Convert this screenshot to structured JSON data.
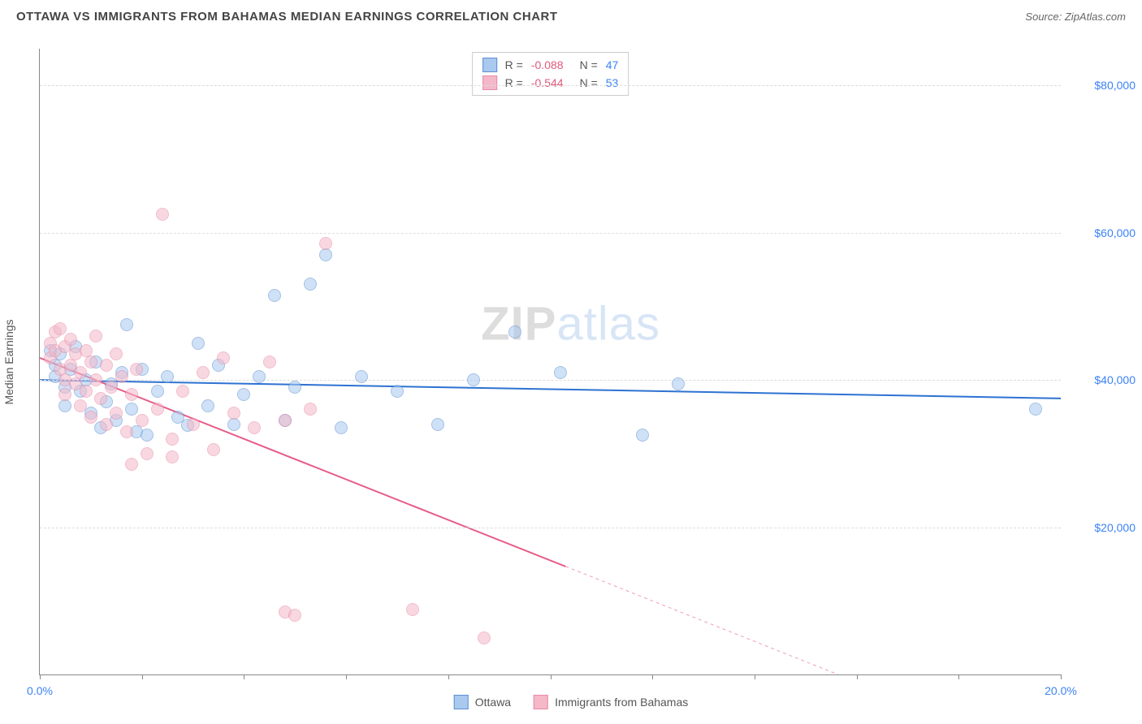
{
  "header": {
    "title": "OTTAWA VS IMMIGRANTS FROM BAHAMAS MEDIAN EARNINGS CORRELATION CHART",
    "source_label": "Source:",
    "source_name": "ZipAtlas.com"
  },
  "chart": {
    "type": "scatter",
    "ylabel": "Median Earnings",
    "xlim": [
      0,
      20
    ],
    "ylim": [
      0,
      85000
    ],
    "y_gridlines": [
      20000,
      40000,
      60000,
      80000
    ],
    "y_tick_labels": [
      "$20,000",
      "$40,000",
      "$60,000",
      "$80,000"
    ],
    "x_ticks": [
      0,
      2,
      4,
      6,
      8,
      10,
      12,
      14,
      16,
      18,
      20
    ],
    "x_tick_labels": {
      "0": "0.0%",
      "20": "20.0%"
    },
    "grid_color": "#dddddd",
    "axis_color": "#888888",
    "background_color": "#ffffff",
    "marker_radius": 8,
    "marker_opacity": 0.55,
    "series": [
      {
        "name": "Ottawa",
        "color_fill": "#a9c9ef",
        "color_stroke": "#5b8fd1",
        "trend": {
          "y_at_x0": 40000,
          "y_at_xmax": 37500,
          "color": "#2d72d2",
          "width": 2,
          "dash_after_x": null
        },
        "stats": {
          "R": "-0.088",
          "N": "47",
          "R_color": "#e05a7a",
          "N_color": "#3b82f6"
        },
        "points": [
          [
            0.2,
            44000
          ],
          [
            0.3,
            42000
          ],
          [
            0.3,
            40500
          ],
          [
            0.4,
            43500
          ],
          [
            0.5,
            39000
          ],
          [
            0.5,
            36500
          ],
          [
            0.6,
            41500
          ],
          [
            0.7,
            44500
          ],
          [
            0.8,
            38500
          ],
          [
            0.9,
            40000
          ],
          [
            1.0,
            35500
          ],
          [
            1.1,
            42500
          ],
          [
            1.2,
            33500
          ],
          [
            1.3,
            37000
          ],
          [
            1.4,
            39500
          ],
          [
            1.5,
            34500
          ],
          [
            1.6,
            41000
          ],
          [
            1.7,
            47500
          ],
          [
            1.8,
            36000
          ],
          [
            1.9,
            33000
          ],
          [
            2.0,
            41500
          ],
          [
            2.1,
            32500
          ],
          [
            2.3,
            38500
          ],
          [
            2.5,
            40500
          ],
          [
            2.7,
            35000
          ],
          [
            2.9,
            33800
          ],
          [
            3.1,
            45000
          ],
          [
            3.3,
            36500
          ],
          [
            3.5,
            42000
          ],
          [
            3.8,
            34000
          ],
          [
            4.0,
            38000
          ],
          [
            4.3,
            40500
          ],
          [
            4.6,
            51500
          ],
          [
            4.8,
            34500
          ],
          [
            5.0,
            39000
          ],
          [
            5.3,
            53000
          ],
          [
            5.6,
            57000
          ],
          [
            5.9,
            33500
          ],
          [
            6.3,
            40500
          ],
          [
            7.0,
            38500
          ],
          [
            7.8,
            34000
          ],
          [
            8.5,
            40000
          ],
          [
            9.3,
            46500
          ],
          [
            10.2,
            41000
          ],
          [
            11.8,
            32500
          ],
          [
            12.5,
            39500
          ],
          [
            19.5,
            36000
          ]
        ]
      },
      {
        "name": "Immigrants from Bahamas",
        "color_fill": "#f4b8c9",
        "color_stroke": "#e78aa5",
        "trend": {
          "y_at_x0": 43000,
          "y_at_xmax": -12000,
          "color": "#e65d88",
          "width": 2,
          "dash_after_x": 10.3
        },
        "stats": {
          "R": "-0.544",
          "N": "53",
          "R_color": "#e05a7a",
          "N_color": "#3b82f6"
        },
        "points": [
          [
            0.2,
            45000
          ],
          [
            0.2,
            43000
          ],
          [
            0.3,
            46500
          ],
          [
            0.3,
            44000
          ],
          [
            0.4,
            41500
          ],
          [
            0.4,
            47000
          ],
          [
            0.5,
            40000
          ],
          [
            0.5,
            44500
          ],
          [
            0.5,
            38000
          ],
          [
            0.6,
            42000
          ],
          [
            0.6,
            45500
          ],
          [
            0.7,
            39500
          ],
          [
            0.7,
            43500
          ],
          [
            0.8,
            41000
          ],
          [
            0.8,
            36500
          ],
          [
            0.9,
            44000
          ],
          [
            0.9,
            38500
          ],
          [
            1.0,
            42500
          ],
          [
            1.0,
            35000
          ],
          [
            1.1,
            40000
          ],
          [
            1.1,
            46000
          ],
          [
            1.2,
            37500
          ],
          [
            1.3,
            42000
          ],
          [
            1.3,
            34000
          ],
          [
            1.4,
            39000
          ],
          [
            1.5,
            43500
          ],
          [
            1.5,
            35500
          ],
          [
            1.6,
            40500
          ],
          [
            1.7,
            33000
          ],
          [
            1.8,
            38000
          ],
          [
            1.9,
            41500
          ],
          [
            2.0,
            34500
          ],
          [
            2.1,
            30000
          ],
          [
            2.3,
            36000
          ],
          [
            2.4,
            62500
          ],
          [
            2.6,
            32000
          ],
          [
            2.8,
            38500
          ],
          [
            3.0,
            34000
          ],
          [
            3.2,
            41000
          ],
          [
            3.4,
            30500
          ],
          [
            3.6,
            43000
          ],
          [
            3.8,
            35500
          ],
          [
            4.2,
            33500
          ],
          [
            4.5,
            42500
          ],
          [
            4.8,
            34500
          ],
          [
            5.3,
            36000
          ],
          [
            5.6,
            58500
          ],
          [
            4.8,
            8500
          ],
          [
            5.0,
            8000
          ],
          [
            7.3,
            8800
          ],
          [
            8.7,
            5000
          ],
          [
            1.8,
            28500
          ],
          [
            2.6,
            29500
          ]
        ]
      }
    ],
    "watermark": {
      "part1": "ZIP",
      "part2": "atlas"
    }
  },
  "legend": {
    "items": [
      {
        "label": "Ottawa",
        "fill": "#a9c9ef",
        "stroke": "#5b8fd1"
      },
      {
        "label": "Immigrants from Bahamas",
        "fill": "#f4b8c9",
        "stroke": "#e78aa5"
      }
    ]
  }
}
